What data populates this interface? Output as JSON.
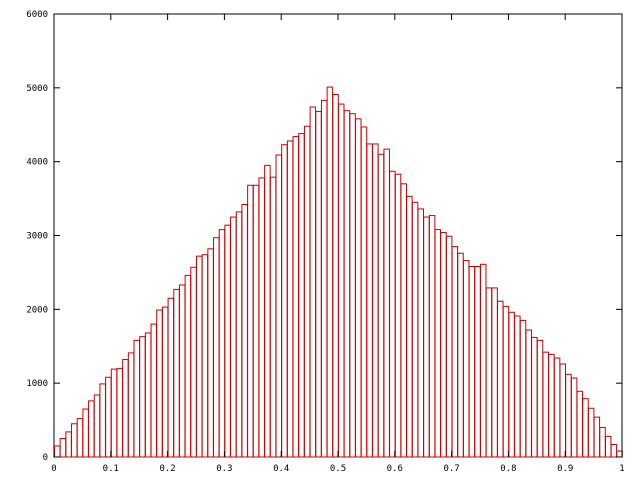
{
  "chart_data": {
    "type": "bar",
    "title": "",
    "xlabel": "",
    "ylabel": "",
    "xlim": [
      0,
      1
    ],
    "ylim": [
      0,
      6000
    ],
    "bin_width": 0.01,
    "x_ticks": [
      "0",
      "0.1",
      "0.2",
      "0.3",
      "0.4",
      "0.5",
      "0.6",
      "0.7",
      "0.8",
      "0.9",
      "1"
    ],
    "y_ticks": [
      "0",
      "1000",
      "2000",
      "3000",
      "4000",
      "5000",
      "6000"
    ],
    "grid": false,
    "legend": "none",
    "bar_color": "#cc0000",
    "series": [
      {
        "values": [
          150,
          250,
          340,
          450,
          520,
          650,
          760,
          840,
          990,
          1080,
          1190,
          1200,
          1320,
          1410,
          1580,
          1630,
          1680,
          1800,
          1990,
          2030,
          2150,
          2270,
          2330,
          2460,
          2570,
          2720,
          2740,
          2820,
          2970,
          3080,
          3140,
          3250,
          3320,
          3420,
          3680,
          3680,
          3780,
          3950,
          3790,
          4090,
          4230,
          4280,
          4340,
          4380,
          4480,
          4740,
          4680,
          4830,
          5010,
          4910,
          4780,
          4690,
          4650,
          4580,
          4470,
          4240,
          4240,
          4100,
          4170,
          3870,
          3830,
          3700,
          3530,
          3450,
          3360,
          3250,
          3270,
          3080,
          3040,
          2990,
          2850,
          2760,
          2660,
          2580,
          2580,
          2610,
          2290,
          2290,
          2110,
          2040,
          1960,
          1910,
          1850,
          1720,
          1620,
          1580,
          1420,
          1390,
          1340,
          1260,
          1120,
          1070,
          890,
          790,
          660,
          540,
          400,
          280,
          170,
          80
        ]
      }
    ]
  }
}
